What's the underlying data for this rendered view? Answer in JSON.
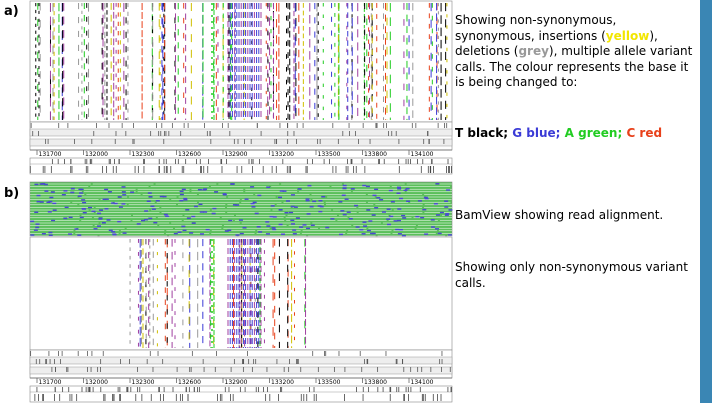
{
  "panel_a": {
    "label": "a)",
    "ruler": [
      131700,
      132000,
      132300,
      132600,
      132900,
      133200,
      133500,
      133800,
      134100
    ]
  },
  "panel_b": {
    "label": "b)",
    "ruler": [
      131700,
      132000,
      132300,
      132600,
      132900,
      133200,
      133500,
      133800,
      134100
    ]
  },
  "notes": {
    "a_description": {
      "part1": "Showing non-synonymous, synonymous, insertions (",
      "yellow": "yellow",
      "part2": "), deletions (",
      "grey": "grey",
      "part3": "), multiple allele variant calls. The colour represents the base it is being changed to:"
    },
    "legend": [
      "T black;",
      "G blue;",
      "A green;",
      "C red"
    ],
    "b_reads": "BamView showing read alignment.",
    "b_variants": "Showing only non-synonymous variant calls."
  }
}
